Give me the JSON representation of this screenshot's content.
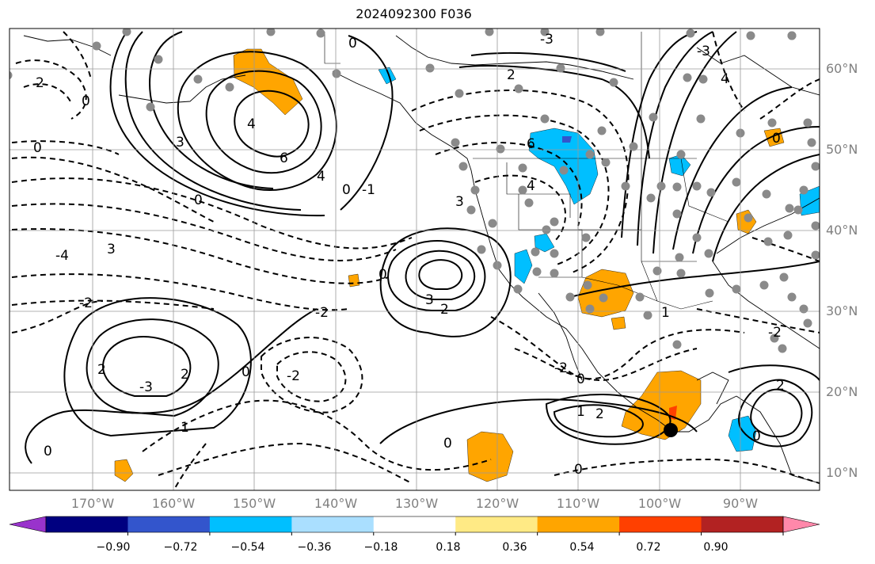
{
  "title": "2024092300 F036",
  "map": {
    "lat_labels": [
      "60°N",
      "50°N",
      "40°N",
      "30°N",
      "20°N",
      "10°N"
    ],
    "lon_labels": [
      "170°W",
      "160°W",
      "150°W",
      "140°W",
      "130°W",
      "120°W",
      "110°W",
      "100°W",
      "90°W"
    ],
    "contour_labels": [
      "6",
      "4",
      "2",
      "0",
      "-2",
      "-4",
      "3",
      "-3",
      "1",
      "-1"
    ]
  },
  "colorbar": {
    "ticks": [
      "−0.90",
      "−0.72",
      "−0.54",
      "−0.36",
      "−0.18",
      "0.18",
      "0.36",
      "0.54",
      "0.72",
      "0.90"
    ],
    "colors": [
      "#9933cc",
      "#000080",
      "#3355cc",
      "#00bfff",
      "#aadfff",
      "#ffffff",
      "#ffea85",
      "#ffa500",
      "#ff4000",
      "#b22222",
      "#ff88aa"
    ]
  },
  "colors": {
    "grid": "#9a9a9a",
    "station": "#8a8a8a",
    "axis_text": "#808080"
  }
}
